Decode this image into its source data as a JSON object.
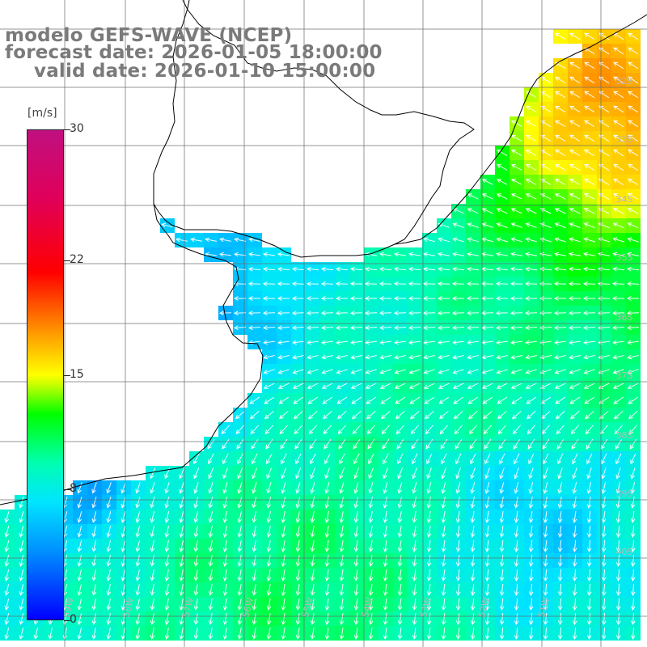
{
  "title": {
    "line1": "modelo GEFS-WAVE (NCEP)",
    "line2": "forecast date: 2026-01-05 18:00:00",
    "line3": "valid date: 2026-01-10 15:00:00"
  },
  "colorbar": {
    "unit": "[m/s]",
    "ticks": [
      "30",
      "22",
      "15",
      "8",
      "0"
    ],
    "tick_values": [
      30,
      22,
      15,
      8,
      0
    ],
    "min": 0,
    "max": 30,
    "colors": [
      "#0000ff",
      "#0090ff",
      "#00e5ff",
      "#00ffb0",
      "#00ff00",
      "#ffff00",
      "#ff0000",
      "#c01080"
    ]
  },
  "grid": {
    "lat_labels": [
      "32S",
      "33S",
      "34S",
      "35S",
      "36S",
      "37S",
      "38S",
      "39S",
      "40S"
    ],
    "lon_labels": [
      "59W",
      "58W",
      "57W",
      "56W",
      "55W",
      "54W",
      "53W",
      "52W",
      "51W"
    ]
  },
  "field": {
    "variable": "wind speed",
    "units": "m/s",
    "land_color": "#ffffff",
    "coast_color": "#000000",
    "arrow_color": "#ffffff"
  }
}
